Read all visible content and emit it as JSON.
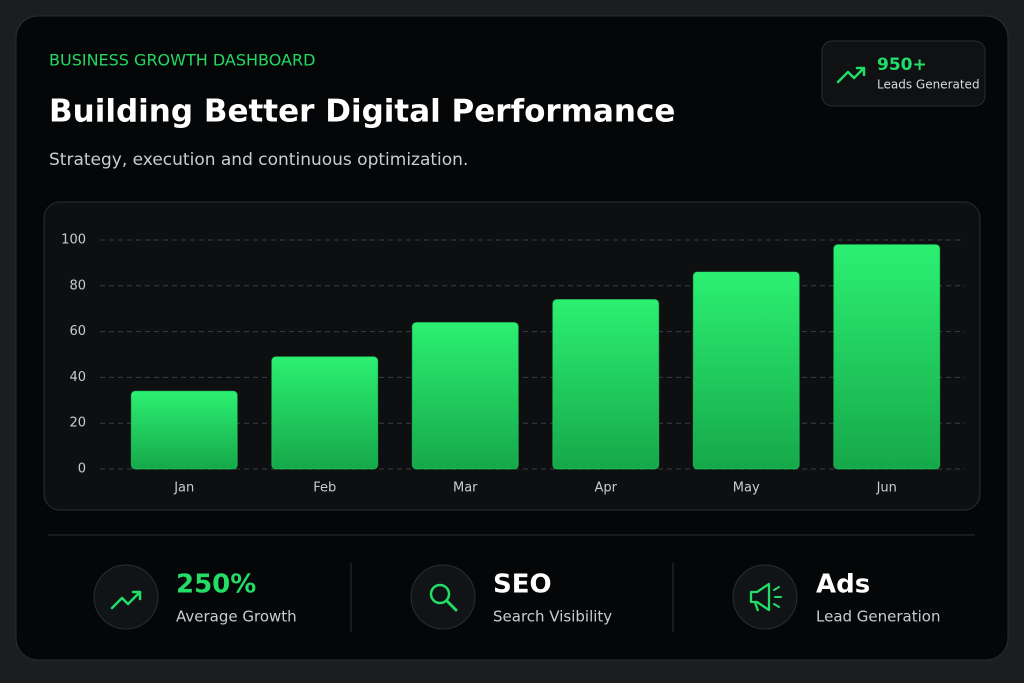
{
  "header": {
    "eyebrow": "BUSINESS GROWTH DASHBOARD",
    "title": "Building Better Digital Performance",
    "subtitle": "Strategy, execution and continuous optimization."
  },
  "badge": {
    "value": "950+",
    "label": "Leads Generated"
  },
  "chart_data": {
    "type": "bar",
    "categories": [
      "Jan",
      "Feb",
      "Mar",
      "Apr",
      "May",
      "Jun"
    ],
    "values": [
      34,
      49,
      64,
      74,
      86,
      98
    ],
    "color": "#22dd66",
    "ylim": [
      0,
      100
    ],
    "yticks": [
      0,
      20,
      40,
      60,
      80,
      100
    ],
    "grid": true
  },
  "stats": [
    {
      "value": "250%",
      "label": "Average Growth"
    },
    {
      "value": "SEO",
      "label": "Search Visibility"
    },
    {
      "value": "Ads",
      "label": "Lead Generation"
    }
  ]
}
